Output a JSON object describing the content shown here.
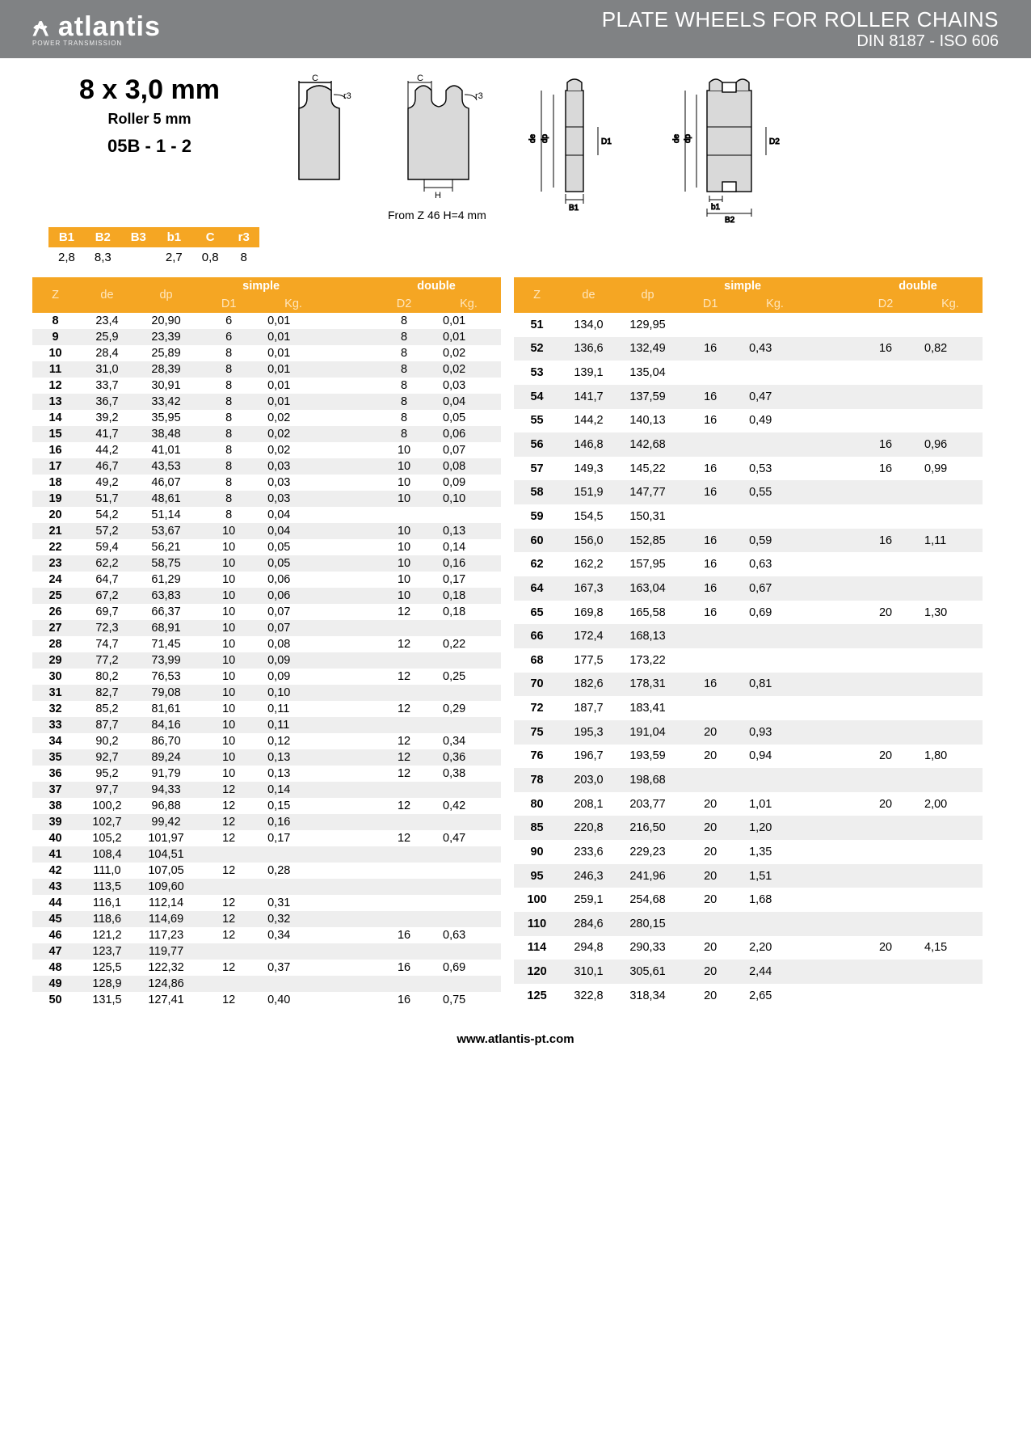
{
  "colors": {
    "header_bg": "#808284",
    "accent": "#f5a623",
    "row_odd": "#eeeeee",
    "text": "#000000"
  },
  "header": {
    "logo_mark": "⍲ atlantis",
    "logo_sub": "POWER TRANSMISSION",
    "title": "PLATE WHEELS FOR ROLLER CHAINS",
    "subtitle": "DIN 8187 - ISO 606"
  },
  "spec": {
    "size": "8 x 3,0 mm",
    "roller": "Roller 5 mm",
    "code": "05B - 1 - 2",
    "h_note": "From Z 46 H=4 mm"
  },
  "btable": {
    "headers": [
      "B1",
      "B2",
      "B3",
      "b1",
      "C",
      "r3"
    ],
    "values": [
      "2,8",
      "8,3",
      "",
      "2,7",
      "0,8",
      "8"
    ]
  },
  "main": {
    "group_labels": {
      "simple": "simple",
      "double": "double"
    },
    "col_labels": {
      "Z": "Z",
      "de": "de",
      "dp": "dp",
      "D1": "D1",
      "D2": "D2",
      "Kg": "Kg."
    },
    "left": [
      {
        "z": "8",
        "de": "23,4",
        "dp": "20,90",
        "d1": "6",
        "kg1": "0,01",
        "d2": "8",
        "kg2": "0,01"
      },
      {
        "z": "9",
        "de": "25,9",
        "dp": "23,39",
        "d1": "6",
        "kg1": "0,01",
        "d2": "8",
        "kg2": "0,01"
      },
      {
        "z": "10",
        "de": "28,4",
        "dp": "25,89",
        "d1": "8",
        "kg1": "0,01",
        "d2": "8",
        "kg2": "0,02"
      },
      {
        "z": "11",
        "de": "31,0",
        "dp": "28,39",
        "d1": "8",
        "kg1": "0,01",
        "d2": "8",
        "kg2": "0,02"
      },
      {
        "z": "12",
        "de": "33,7",
        "dp": "30,91",
        "d1": "8",
        "kg1": "0,01",
        "d2": "8",
        "kg2": "0,03"
      },
      {
        "z": "13",
        "de": "36,7",
        "dp": "33,42",
        "d1": "8",
        "kg1": "0,01",
        "d2": "8",
        "kg2": "0,04"
      },
      {
        "z": "14",
        "de": "39,2",
        "dp": "35,95",
        "d1": "8",
        "kg1": "0,02",
        "d2": "8",
        "kg2": "0,05"
      },
      {
        "z": "15",
        "de": "41,7",
        "dp": "38,48",
        "d1": "8",
        "kg1": "0,02",
        "d2": "8",
        "kg2": "0,06"
      },
      {
        "z": "16",
        "de": "44,2",
        "dp": "41,01",
        "d1": "8",
        "kg1": "0,02",
        "d2": "10",
        "kg2": "0,07"
      },
      {
        "z": "17",
        "de": "46,7",
        "dp": "43,53",
        "d1": "8",
        "kg1": "0,03",
        "d2": "10",
        "kg2": "0,08"
      },
      {
        "z": "18",
        "de": "49,2",
        "dp": "46,07",
        "d1": "8",
        "kg1": "0,03",
        "d2": "10",
        "kg2": "0,09"
      },
      {
        "z": "19",
        "de": "51,7",
        "dp": "48,61",
        "d1": "8",
        "kg1": "0,03",
        "d2": "10",
        "kg2": "0,10"
      },
      {
        "z": "20",
        "de": "54,2",
        "dp": "51,14",
        "d1": "8",
        "kg1": "0,04",
        "d2": "",
        "kg2": ""
      },
      {
        "z": "21",
        "de": "57,2",
        "dp": "53,67",
        "d1": "10",
        "kg1": "0,04",
        "d2": "10",
        "kg2": "0,13"
      },
      {
        "z": "22",
        "de": "59,4",
        "dp": "56,21",
        "d1": "10",
        "kg1": "0,05",
        "d2": "10",
        "kg2": "0,14"
      },
      {
        "z": "23",
        "de": "62,2",
        "dp": "58,75",
        "d1": "10",
        "kg1": "0,05",
        "d2": "10",
        "kg2": "0,16"
      },
      {
        "z": "24",
        "de": "64,7",
        "dp": "61,29",
        "d1": "10",
        "kg1": "0,06",
        "d2": "10",
        "kg2": "0,17"
      },
      {
        "z": "25",
        "de": "67,2",
        "dp": "63,83",
        "d1": "10",
        "kg1": "0,06",
        "d2": "10",
        "kg2": "0,18"
      },
      {
        "z": "26",
        "de": "69,7",
        "dp": "66,37",
        "d1": "10",
        "kg1": "0,07",
        "d2": "12",
        "kg2": "0,18"
      },
      {
        "z": "27",
        "de": "72,3",
        "dp": "68,91",
        "d1": "10",
        "kg1": "0,07",
        "d2": "",
        "kg2": ""
      },
      {
        "z": "28",
        "de": "74,7",
        "dp": "71,45",
        "d1": "10",
        "kg1": "0,08",
        "d2": "12",
        "kg2": "0,22"
      },
      {
        "z": "29",
        "de": "77,2",
        "dp": "73,99",
        "d1": "10",
        "kg1": "0,09",
        "d2": "",
        "kg2": ""
      },
      {
        "z": "30",
        "de": "80,2",
        "dp": "76,53",
        "d1": "10",
        "kg1": "0,09",
        "d2": "12",
        "kg2": "0,25"
      },
      {
        "z": "31",
        "de": "82,7",
        "dp": "79,08",
        "d1": "10",
        "kg1": "0,10",
        "d2": "",
        "kg2": ""
      },
      {
        "z": "32",
        "de": "85,2",
        "dp": "81,61",
        "d1": "10",
        "kg1": "0,11",
        "d2": "12",
        "kg2": "0,29"
      },
      {
        "z": "33",
        "de": "87,7",
        "dp": "84,16",
        "d1": "10",
        "kg1": "0,11",
        "d2": "",
        "kg2": ""
      },
      {
        "z": "34",
        "de": "90,2",
        "dp": "86,70",
        "d1": "10",
        "kg1": "0,12",
        "d2": "12",
        "kg2": "0,34"
      },
      {
        "z": "35",
        "de": "92,7",
        "dp": "89,24",
        "d1": "10",
        "kg1": "0,13",
        "d2": "12",
        "kg2": "0,36"
      },
      {
        "z": "36",
        "de": "95,2",
        "dp": "91,79",
        "d1": "10",
        "kg1": "0,13",
        "d2": "12",
        "kg2": "0,38"
      },
      {
        "z": "37",
        "de": "97,7",
        "dp": "94,33",
        "d1": "12",
        "kg1": "0,14",
        "d2": "",
        "kg2": ""
      },
      {
        "z": "38",
        "de": "100,2",
        "dp": "96,88",
        "d1": "12",
        "kg1": "0,15",
        "d2": "12",
        "kg2": "0,42"
      },
      {
        "z": "39",
        "de": "102,7",
        "dp": "99,42",
        "d1": "12",
        "kg1": "0,16",
        "d2": "",
        "kg2": ""
      },
      {
        "z": "40",
        "de": "105,2",
        "dp": "101,97",
        "d1": "12",
        "kg1": "0,17",
        "d2": "12",
        "kg2": "0,47"
      },
      {
        "z": "41",
        "de": "108,4",
        "dp": "104,51",
        "d1": "",
        "kg1": "",
        "d2": "",
        "kg2": ""
      },
      {
        "z": "42",
        "de": "111,0",
        "dp": "107,05",
        "d1": "12",
        "kg1": "0,28",
        "d2": "",
        "kg2": ""
      },
      {
        "z": "43",
        "de": "113,5",
        "dp": "109,60",
        "d1": "",
        "kg1": "",
        "d2": "",
        "kg2": ""
      },
      {
        "z": "44",
        "de": "116,1",
        "dp": "112,14",
        "d1": "12",
        "kg1": "0,31",
        "d2": "",
        "kg2": ""
      },
      {
        "z": "45",
        "de": "118,6",
        "dp": "114,69",
        "d1": "12",
        "kg1": "0,32",
        "d2": "",
        "kg2": ""
      },
      {
        "z": "46",
        "de": "121,2",
        "dp": "117,23",
        "d1": "12",
        "kg1": "0,34",
        "d2": "16",
        "kg2": "0,63"
      },
      {
        "z": "47",
        "de": "123,7",
        "dp": "119,77",
        "d1": "",
        "kg1": "",
        "d2": "",
        "kg2": ""
      },
      {
        "z": "48",
        "de": "125,5",
        "dp": "122,32",
        "d1": "12",
        "kg1": "0,37",
        "d2": "16",
        "kg2": "0,69"
      },
      {
        "z": "49",
        "de": "128,9",
        "dp": "124,86",
        "d1": "",
        "kg1": "",
        "d2": "",
        "kg2": ""
      },
      {
        "z": "50",
        "de": "131,5",
        "dp": "127,41",
        "d1": "12",
        "kg1": "0,40",
        "d2": "16",
        "kg2": "0,75"
      }
    ],
    "right": [
      {
        "z": "51",
        "de": "134,0",
        "dp": "129,95",
        "d1": "",
        "kg1": "",
        "d2": "",
        "kg2": ""
      },
      {
        "z": "52",
        "de": "136,6",
        "dp": "132,49",
        "d1": "16",
        "kg1": "0,43",
        "d2": "16",
        "kg2": "0,82"
      },
      {
        "z": "53",
        "de": "139,1",
        "dp": "135,04",
        "d1": "",
        "kg1": "",
        "d2": "",
        "kg2": ""
      },
      {
        "z": "54",
        "de": "141,7",
        "dp": "137,59",
        "d1": "16",
        "kg1": "0,47",
        "d2": "",
        "kg2": ""
      },
      {
        "z": "55",
        "de": "144,2",
        "dp": "140,13",
        "d1": "16",
        "kg1": "0,49",
        "d2": "",
        "kg2": ""
      },
      {
        "z": "56",
        "de": "146,8",
        "dp": "142,68",
        "d1": "",
        "kg1": "",
        "d2": "16",
        "kg2": "0,96"
      },
      {
        "z": "57",
        "de": "149,3",
        "dp": "145,22",
        "d1": "16",
        "kg1": "0,53",
        "d2": "16",
        "kg2": "0,99"
      },
      {
        "z": "58",
        "de": "151,9",
        "dp": "147,77",
        "d1": "16",
        "kg1": "0,55",
        "d2": "",
        "kg2": ""
      },
      {
        "z": "59",
        "de": "154,5",
        "dp": "150,31",
        "d1": "",
        "kg1": "",
        "d2": "",
        "kg2": ""
      },
      {
        "z": "60",
        "de": "156,0",
        "dp": "152,85",
        "d1": "16",
        "kg1": "0,59",
        "d2": "16",
        "kg2": "1,11"
      },
      {
        "z": "62",
        "de": "162,2",
        "dp": "157,95",
        "d1": "16",
        "kg1": "0,63",
        "d2": "",
        "kg2": ""
      },
      {
        "z": "64",
        "de": "167,3",
        "dp": "163,04",
        "d1": "16",
        "kg1": "0,67",
        "d2": "",
        "kg2": ""
      },
      {
        "z": "65",
        "de": "169,8",
        "dp": "165,58",
        "d1": "16",
        "kg1": "0,69",
        "d2": "20",
        "kg2": "1,30"
      },
      {
        "z": "66",
        "de": "172,4",
        "dp": "168,13",
        "d1": "",
        "kg1": "",
        "d2": "",
        "kg2": ""
      },
      {
        "z": "68",
        "de": "177,5",
        "dp": "173,22",
        "d1": "",
        "kg1": "",
        "d2": "",
        "kg2": ""
      },
      {
        "z": "70",
        "de": "182,6",
        "dp": "178,31",
        "d1": "16",
        "kg1": "0,81",
        "d2": "",
        "kg2": ""
      },
      {
        "z": "72",
        "de": "187,7",
        "dp": "183,41",
        "d1": "",
        "kg1": "",
        "d2": "",
        "kg2": ""
      },
      {
        "z": "75",
        "de": "195,3",
        "dp": "191,04",
        "d1": "20",
        "kg1": "0,93",
        "d2": "",
        "kg2": ""
      },
      {
        "z": "76",
        "de": "196,7",
        "dp": "193,59",
        "d1": "20",
        "kg1": "0,94",
        "d2": "20",
        "kg2": "1,80"
      },
      {
        "z": "78",
        "de": "203,0",
        "dp": "198,68",
        "d1": "",
        "kg1": "",
        "d2": "",
        "kg2": ""
      },
      {
        "z": "80",
        "de": "208,1",
        "dp": "203,77",
        "d1": "20",
        "kg1": "1,01",
        "d2": "20",
        "kg2": "2,00"
      },
      {
        "z": "85",
        "de": "220,8",
        "dp": "216,50",
        "d1": "20",
        "kg1": "1,20",
        "d2": "",
        "kg2": ""
      },
      {
        "z": "90",
        "de": "233,6",
        "dp": "229,23",
        "d1": "20",
        "kg1": "1,35",
        "d2": "",
        "kg2": ""
      },
      {
        "z": "95",
        "de": "246,3",
        "dp": "241,96",
        "d1": "20",
        "kg1": "1,51",
        "d2": "",
        "kg2": ""
      },
      {
        "z": "100",
        "de": "259,1",
        "dp": "254,68",
        "d1": "20",
        "kg1": "1,68",
        "d2": "",
        "kg2": ""
      },
      {
        "z": "110",
        "de": "284,6",
        "dp": "280,15",
        "d1": "",
        "kg1": "",
        "d2": "",
        "kg2": ""
      },
      {
        "z": "114",
        "de": "294,8",
        "dp": "290,33",
        "d1": "20",
        "kg1": "2,20",
        "d2": "20",
        "kg2": "4,15"
      },
      {
        "z": "120",
        "de": "310,1",
        "dp": "305,61",
        "d1": "20",
        "kg1": "2,44",
        "d2": "",
        "kg2": ""
      },
      {
        "z": "125",
        "de": "322,8",
        "dp": "318,34",
        "d1": "20",
        "kg1": "2,65",
        "d2": "",
        "kg2": ""
      }
    ]
  },
  "footer": "www.atlantis-pt.com"
}
